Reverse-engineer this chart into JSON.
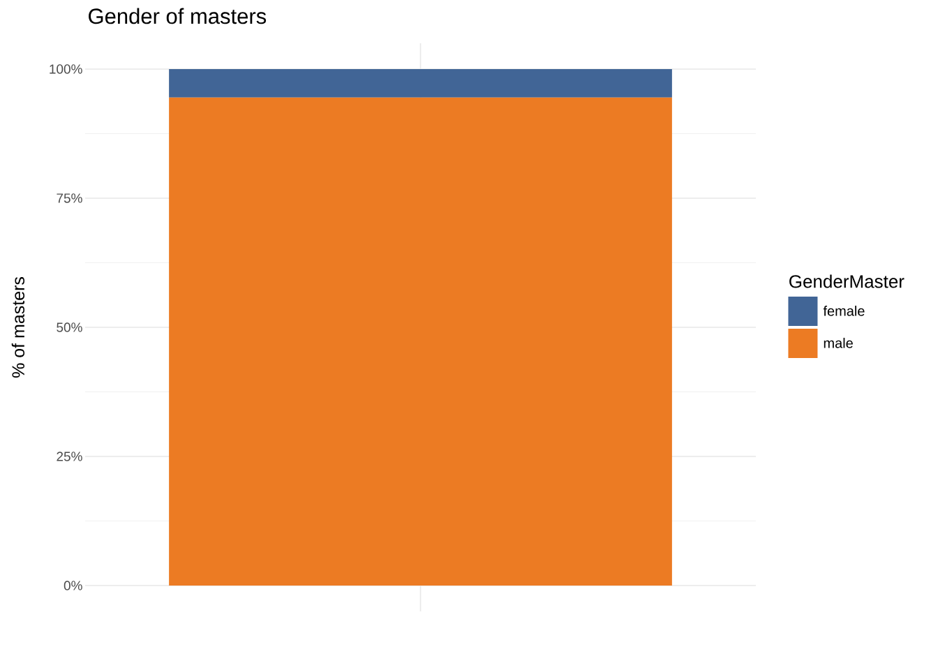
{
  "chart_data": {
    "type": "bar",
    "title": "Gender of masters",
    "ylabel": "% of masters",
    "legend_title": "GenderMaster",
    "categories": [
      null
    ],
    "stacked": true,
    "series": [
      {
        "name": "male",
        "color": "#ec7b23",
        "values": [
          94.5
        ]
      },
      {
        "name": "female",
        "color": "#416596",
        "values": [
          5.5
        ]
      }
    ],
    "ylim": [
      -5,
      105
    ],
    "yticks": [
      {
        "value": 0,
        "label": "0%"
      },
      {
        "value": 25,
        "label": "25%"
      },
      {
        "value": 50,
        "label": "50%"
      },
      {
        "value": 75,
        "label": "75%"
      },
      {
        "value": 100,
        "label": "100%"
      }
    ],
    "grid": true,
    "legend": "right"
  }
}
